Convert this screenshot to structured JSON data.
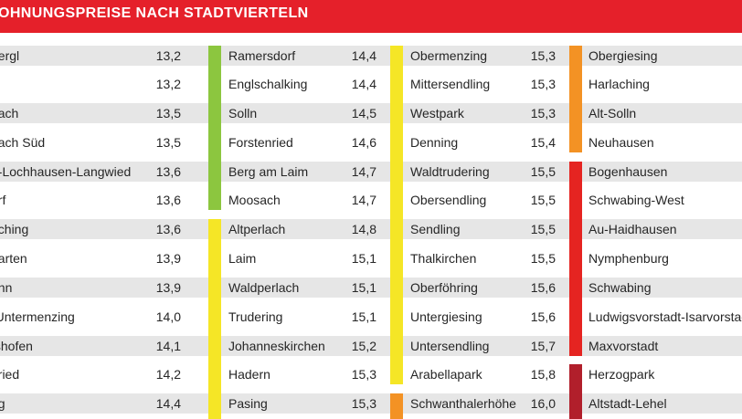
{
  "title": "OHNUNGSPREISE NACH STADTVIERTELN",
  "colors": {
    "header": "#e5202a",
    "green": "#8cc63f",
    "yellow": "#f5e626",
    "orange": "#f39224",
    "red": "#e52421",
    "darkred": "#b11f2b",
    "band": "#e6e6e6"
  },
  "columns": [
    {
      "rows": [
        {
          "name": "bergl",
          "value": "13,2"
        },
        {
          "name": "",
          "value": "13,2"
        },
        {
          "name": "rlach",
          "value": "13,5"
        },
        {
          "name": "rlach Süd",
          "value": "13,5"
        },
        {
          "name": "g-Lochhausen-Langwied",
          "value": "13,6"
        },
        {
          "name": "orf",
          "value": "13,6"
        },
        {
          "name": "oching",
          "value": "13,6"
        },
        {
          "name": "garten",
          "value": "13,9"
        },
        {
          "name": "ann",
          "value": "13,9"
        },
        {
          "name": "-Untermenzing",
          "value": "14,0"
        },
        {
          "name": "tshofen",
          "value": "14,1"
        },
        {
          "name": "nried",
          "value": "14,2"
        },
        {
          "name": "ng",
          "value": "14,4"
        }
      ]
    },
    {
      "rows": [
        {
          "name": "Ramersdorf",
          "value": "14,4"
        },
        {
          "name": "Englschalking",
          "value": "14,4"
        },
        {
          "name": "Solln",
          "value": "14,5"
        },
        {
          "name": "Forstenried",
          "value": "14,6"
        },
        {
          "name": "Berg am Laim",
          "value": "14,7"
        },
        {
          "name": "Moosach",
          "value": "14,7"
        },
        {
          "name": "Altperlach",
          "value": "14,8"
        },
        {
          "name": "Laim",
          "value": "15,1"
        },
        {
          "name": "Waldperlach",
          "value": "15,1"
        },
        {
          "name": "Trudering",
          "value": "15,1"
        },
        {
          "name": "Johanneskirchen",
          "value": "15,2"
        },
        {
          "name": "Hadern",
          "value": "15,3"
        },
        {
          "name": "Pasing",
          "value": "15,3"
        }
      ]
    },
    {
      "rows": [
        {
          "name": "Obermenzing",
          "value": "15,3"
        },
        {
          "name": "Mittersendling",
          "value": "15,3"
        },
        {
          "name": "Westpark",
          "value": "15,3"
        },
        {
          "name": "Denning",
          "value": "15,4"
        },
        {
          "name": "Waldtrudering",
          "value": "15,5"
        },
        {
          "name": "Obersendling",
          "value": "15,5"
        },
        {
          "name": "Sendling",
          "value": "15,5"
        },
        {
          "name": "Thalkirchen",
          "value": "15,5"
        },
        {
          "name": "Oberföhring",
          "value": "15,6"
        },
        {
          "name": "Untergiesing",
          "value": "15,6"
        },
        {
          "name": "Untersendling",
          "value": "15,7"
        },
        {
          "name": "Arabellapark",
          "value": "15,8"
        },
        {
          "name": "Schwanthalerhöhe",
          "value": "16,0"
        }
      ]
    },
    {
      "rows": [
        {
          "name": "Obergiesing",
          "value": ""
        },
        {
          "name": "Harlaching",
          "value": ""
        },
        {
          "name": "Alt-Solln",
          "value": ""
        },
        {
          "name": "Neuhausen",
          "value": ""
        },
        {
          "name": "Bogenhausen",
          "value": ""
        },
        {
          "name": "Schwabing-West",
          "value": ""
        },
        {
          "name": "Au-Haidhausen",
          "value": ""
        },
        {
          "name": "Nymphenburg",
          "value": ""
        },
        {
          "name": "Schwabing",
          "value": ""
        },
        {
          "name": "Ludwigsvorstadt-Isarvorstadt",
          "value": ""
        },
        {
          "name": "Maxvorstadt",
          "value": ""
        },
        {
          "name": "Herzogpark",
          "value": ""
        },
        {
          "name": "Altstadt-Lehel",
          "value": ""
        }
      ]
    }
  ],
  "bars": [
    {
      "column": 1,
      "from_row": 0,
      "to_row": 5,
      "color": "green"
    },
    {
      "column": 1,
      "from_row": 6,
      "to_row": 12,
      "color": "yellow"
    },
    {
      "column": 2,
      "from_row": 0,
      "to_row": 11,
      "color": "yellow"
    },
    {
      "column": 2,
      "from_row": 12,
      "to_row": 12,
      "color": "orange"
    },
    {
      "column": 3,
      "from_row": 0,
      "to_row": 3,
      "color": "orange"
    },
    {
      "column": 3,
      "from_row": 4,
      "to_row": 10,
      "color": "red"
    },
    {
      "column": 3,
      "from_row": 11,
      "to_row": 12,
      "color": "darkred"
    }
  ]
}
